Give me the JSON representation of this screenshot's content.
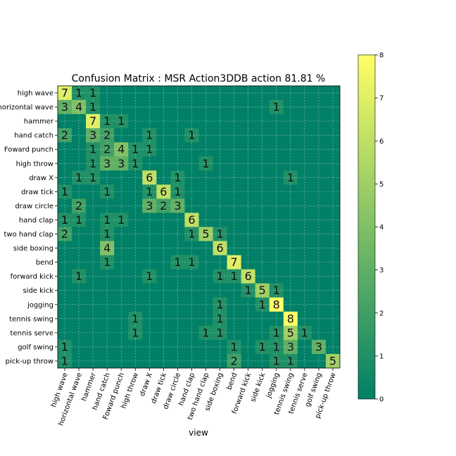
{
  "chart_data": {
    "type": "heatmap",
    "title": "Confusion Matrix : MSR Action3DDB action  81.81 %",
    "xlabel": "view",
    "ylabel": "",
    "grid": true,
    "labels": [
      "high wave",
      "horizontal wave",
      "hammer",
      "hand catch",
      "Foward punch",
      "high throw",
      "draw X",
      "draw tick",
      "draw circle",
      "hand clap",
      "two hand clap",
      "side boxing",
      "bend",
      "forward kick",
      "side kick",
      "jogging",
      "tennis swing",
      "tennis serve",
      "golf swing",
      "pick-up throw"
    ],
    "matrix": [
      [
        7,
        1,
        1,
        0,
        0,
        0,
        0,
        0,
        0,
        0,
        0,
        0,
        0,
        0,
        0,
        0,
        0,
        0,
        0,
        0
      ],
      [
        3,
        4,
        1,
        0,
        0,
        0,
        0,
        0,
        0,
        0,
        0,
        0,
        0,
        0,
        0,
        1,
        0,
        0,
        0,
        0
      ],
      [
        0,
        0,
        7,
        1,
        1,
        0,
        0,
        0,
        0,
        0,
        0,
        0,
        0,
        0,
        0,
        0,
        0,
        0,
        0,
        0
      ],
      [
        2,
        0,
        3,
        2,
        0,
        0,
        1,
        0,
        0,
        1,
        0,
        0,
        0,
        0,
        0,
        0,
        0,
        0,
        0,
        0
      ],
      [
        0,
        0,
        1,
        2,
        4,
        1,
        1,
        0,
        0,
        0,
        0,
        0,
        0,
        0,
        0,
        0,
        0,
        0,
        0,
        0
      ],
      [
        0,
        0,
        1,
        3,
        3,
        1,
        0,
        0,
        0,
        0,
        1,
        0,
        0,
        0,
        0,
        0,
        0,
        0,
        0,
        0
      ],
      [
        0,
        1,
        1,
        0,
        0,
        0,
        6,
        0,
        1,
        0,
        0,
        0,
        0,
        0,
        0,
        0,
        1,
        0,
        0,
        0
      ],
      [
        1,
        0,
        0,
        1,
        0,
        0,
        1,
        6,
        1,
        0,
        0,
        0,
        0,
        0,
        0,
        0,
        0,
        0,
        0,
        0
      ],
      [
        0,
        2,
        0,
        0,
        0,
        0,
        3,
        2,
        3,
        0,
        0,
        0,
        0,
        0,
        0,
        0,
        0,
        0,
        0,
        0
      ],
      [
        1,
        1,
        0,
        1,
        1,
        0,
        0,
        0,
        0,
        6,
        0,
        0,
        0,
        0,
        0,
        0,
        0,
        0,
        0,
        0
      ],
      [
        2,
        0,
        0,
        1,
        0,
        0,
        0,
        0,
        0,
        1,
        5,
        1,
        0,
        0,
        0,
        0,
        0,
        0,
        0,
        0
      ],
      [
        0,
        0,
        0,
        4,
        0,
        0,
        0,
        0,
        0,
        0,
        0,
        6,
        0,
        0,
        0,
        0,
        0,
        0,
        0,
        0
      ],
      [
        0,
        0,
        0,
        1,
        0,
        0,
        0,
        0,
        1,
        1,
        0,
        0,
        7,
        0,
        0,
        0,
        0,
        0,
        0,
        0
      ],
      [
        0,
        1,
        0,
        0,
        0,
        0,
        1,
        0,
        0,
        0,
        0,
        1,
        1,
        6,
        0,
        0,
        0,
        0,
        0,
        0
      ],
      [
        0,
        0,
        0,
        0,
        0,
        0,
        0,
        0,
        0,
        0,
        0,
        0,
        0,
        1,
        5,
        1,
        0,
        0,
        0,
        0
      ],
      [
        0,
        0,
        0,
        0,
        0,
        0,
        0,
        0,
        0,
        0,
        0,
        1,
        0,
        0,
        1,
        8,
        0,
        0,
        0,
        0
      ],
      [
        0,
        0,
        0,
        0,
        0,
        1,
        0,
        0,
        0,
        0,
        0,
        1,
        0,
        0,
        0,
        0,
        8,
        0,
        0,
        0
      ],
      [
        0,
        0,
        0,
        0,
        0,
        1,
        0,
        0,
        0,
        0,
        1,
        1,
        0,
        0,
        0,
        1,
        5,
        1,
        0,
        0
      ],
      [
        1,
        0,
        0,
        0,
        0,
        0,
        0,
        0,
        0,
        0,
        0,
        0,
        1,
        0,
        1,
        1,
        3,
        0,
        3,
        0
      ],
      [
        1,
        0,
        0,
        0,
        0,
        0,
        0,
        0,
        0,
        0,
        0,
        0,
        2,
        0,
        0,
        1,
        1,
        0,
        0,
        5
      ]
    ],
    "colorbar": {
      "range": [
        0,
        8
      ],
      "ticks": [
        "0",
        "1",
        "2",
        "3",
        "4",
        "5",
        "6",
        "7",
        "8"
      ]
    },
    "colormap": [
      "#008066",
      "#ffff66"
    ]
  }
}
